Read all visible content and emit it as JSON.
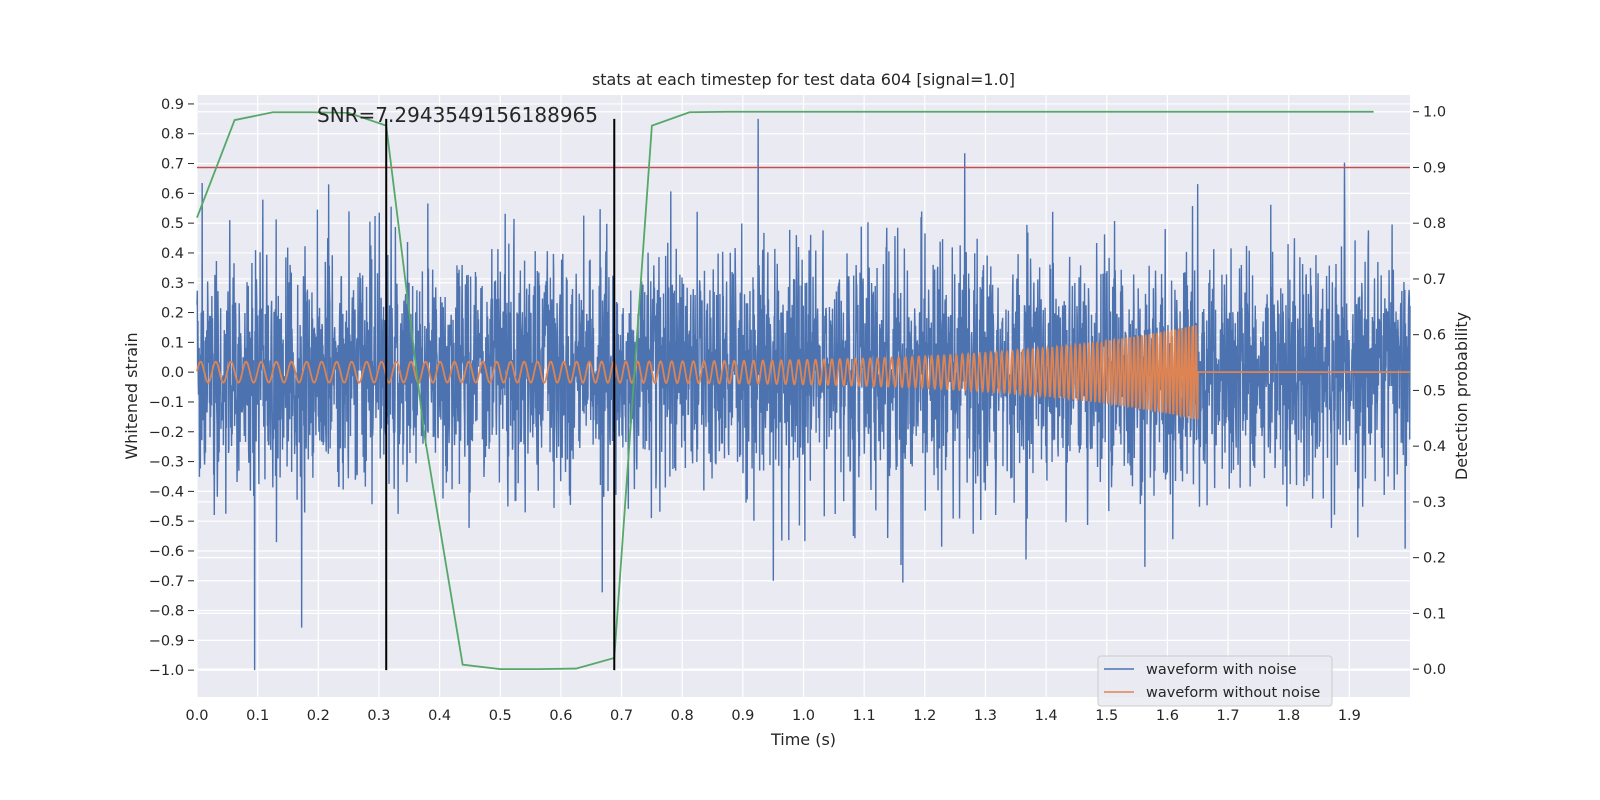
{
  "chart_data": {
    "type": "line",
    "title": "stats at each timestep for test data 604 [signal=1.0]",
    "annotation": "SNR=7.2943549156188965",
    "xlabel": "Time (s)",
    "ylabel": "Whitened strain",
    "ylabel_right": "Detection probability",
    "xlim": [
      0.0,
      2.0
    ],
    "ylim": [
      -1.09,
      0.93
    ],
    "ylim_right": [
      -0.05,
      1.03
    ],
    "x_ticks": [
      "0.0",
      "0.1",
      "0.2",
      "0.3",
      "0.4",
      "0.5",
      "0.6",
      "0.7",
      "0.8",
      "0.9",
      "1.0",
      "1.1",
      "1.2",
      "1.3",
      "1.4",
      "1.5",
      "1.6",
      "1.7",
      "1.8",
      "1.9"
    ],
    "y_ticks": [
      "0.9",
      "0.8",
      "0.7",
      "0.6",
      "0.5",
      "0.4",
      "0.3",
      "0.2",
      "0.1",
      "0.0",
      "−0.1",
      "−0.2",
      "−0.3",
      "−0.4",
      "−0.5",
      "−0.6",
      "−0.7",
      "−0.8",
      "−0.9",
      "−1.0"
    ],
    "y_ticks_right": [
      "1.0",
      "0.9",
      "0.8",
      "0.7",
      "0.6",
      "0.5",
      "0.4",
      "0.3",
      "0.2",
      "0.1",
      "0.0"
    ],
    "series": [
      {
        "name": "waveform with noise",
        "axis": "left",
        "color": "#4c72b0",
        "noise_sigma": 0.2,
        "min": -1.0,
        "max": 0.85,
        "spike_times": [
          0.095,
          0.925,
          0.95
        ]
      },
      {
        "name": "waveform without noise",
        "axis": "left",
        "color": "#dd8452",
        "amplitude_start": 0.035,
        "amplitude_end": 0.16,
        "frequency_start_hz": 40,
        "frequency_end_hz": 180,
        "merger_time": 1.65
      },
      {
        "name": "detection probability",
        "axis": "right",
        "color": "#55a868",
        "x": [
          0.0,
          0.062,
          0.125,
          0.188,
          0.25,
          0.312,
          0.375,
          0.438,
          0.5,
          0.562,
          0.625,
          0.688,
          0.75,
          0.812,
          0.875,
          0.938,
          1.0,
          1.0625,
          1.125,
          1.1875,
          1.25,
          1.3125,
          1.375,
          1.4375,
          1.5,
          1.5625,
          1.625,
          1.6875,
          1.75,
          1.8125,
          1.875,
          1.94
        ],
        "values": [
          0.81,
          0.985,
          0.999,
          0.999,
          0.998,
          0.975,
          0.42,
          0.008,
          0.0,
          0.0,
          0.001,
          0.02,
          0.975,
          0.999,
          1.0,
          1.0,
          1.0,
          1.0,
          1.0,
          1.0,
          1.0,
          1.0,
          1.0,
          1.0,
          1.0,
          1.0,
          1.0,
          1.0,
          1.0,
          1.0,
          1.0,
          1.0
        ]
      }
    ],
    "threshold": {
      "axis": "right",
      "value": 0.9,
      "color": "#c44e52"
    },
    "vertical_markers": [
      {
        "x": 0.312,
        "y_from": -1.0,
        "y_to": 0.85,
        "color": "#000000"
      },
      {
        "x": 0.688,
        "y_from": -1.0,
        "y_to": 0.85,
        "color": "#000000"
      }
    ],
    "legend": {
      "position": "lower-right",
      "entries": [
        "waveform with noise",
        "waveform without noise"
      ]
    },
    "grid": true
  }
}
